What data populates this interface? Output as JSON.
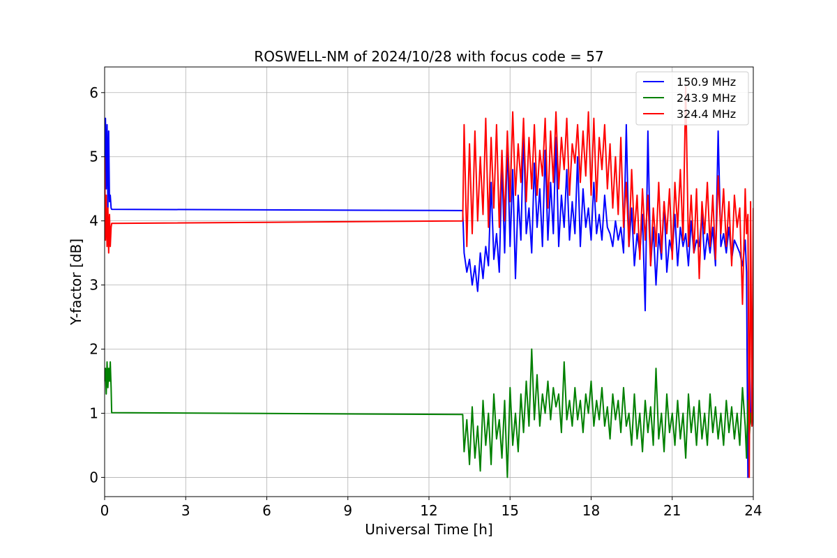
{
  "chart_data": {
    "type": "line",
    "title": "ROSWELL-NM of 2024/10/28 with focus code = 57",
    "xlabel": "Universal Time [h]",
    "ylabel": "Y-factor [dB]",
    "xlim": [
      0,
      24
    ],
    "ylim": [
      -0.3,
      6.4
    ],
    "xticks": [
      0,
      3,
      6,
      9,
      12,
      15,
      18,
      21,
      24
    ],
    "yticks": [
      0,
      1,
      2,
      3,
      4,
      5,
      6
    ],
    "xtick_labels": [
      "0",
      "3",
      "6",
      "9",
      "12",
      "15",
      "18",
      "21",
      "24"
    ],
    "ytick_labels": [
      "0",
      "1",
      "2",
      "3",
      "4",
      "5",
      "6"
    ],
    "grid": true,
    "legend_position": "top-right",
    "series": [
      {
        "name": "150.9 MHz",
        "color": "#0000ff",
        "x": [
          0.0,
          0.03,
          0.06,
          0.09,
          0.12,
          0.15,
          0.18,
          0.21,
          0.24,
          0.26,
          13.25,
          13.3,
          13.4,
          13.5,
          13.6,
          13.7,
          13.8,
          13.9,
          14.0,
          14.1,
          14.2,
          14.3,
          14.4,
          14.5,
          14.6,
          14.7,
          14.8,
          14.9,
          15.0,
          15.1,
          15.2,
          15.3,
          15.4,
          15.5,
          15.6,
          15.7,
          15.8,
          15.9,
          16.0,
          16.1,
          16.2,
          16.3,
          16.4,
          16.5,
          16.6,
          16.7,
          16.8,
          16.9,
          17.0,
          17.1,
          17.2,
          17.3,
          17.4,
          17.5,
          17.6,
          17.7,
          17.8,
          17.9,
          18.0,
          18.1,
          18.2,
          18.3,
          18.4,
          18.5,
          18.6,
          18.7,
          18.8,
          18.9,
          19.0,
          19.1,
          19.2,
          19.3,
          19.4,
          19.5,
          19.6,
          19.7,
          19.8,
          19.9,
          20.0,
          20.1,
          20.2,
          20.3,
          20.4,
          20.5,
          20.6,
          20.7,
          20.8,
          20.9,
          21.0,
          21.1,
          21.2,
          21.3,
          21.4,
          21.5,
          21.6,
          21.7,
          21.8,
          21.9,
          22.0,
          22.1,
          22.2,
          22.3,
          22.4,
          22.5,
          22.6,
          22.7,
          22.8,
          22.9,
          23.0,
          23.1,
          23.2,
          23.3,
          23.4,
          23.5,
          23.6,
          23.7,
          23.75,
          23.8,
          23.85,
          23.9,
          23.95,
          24.0
        ],
        "y": [
          4.8,
          5.6,
          4.5,
          5.5,
          4.2,
          5.4,
          4.3,
          4.4,
          4.2,
          4.18,
          4.16,
          3.5,
          3.2,
          3.4,
          3.0,
          3.3,
          2.9,
          3.5,
          3.1,
          3.6,
          3.3,
          4.6,
          3.4,
          3.8,
          3.2,
          4.9,
          3.5,
          5.2,
          3.6,
          4.8,
          3.1,
          4.4,
          3.7,
          5.4,
          3.8,
          4.2,
          3.5,
          4.9,
          3.9,
          4.5,
          3.6,
          5.1,
          3.7,
          4.6,
          3.8,
          5.3,
          3.6,
          4.4,
          3.9,
          4.8,
          3.7,
          4.3,
          3.8,
          5.0,
          3.6,
          4.5,
          3.9,
          4.2,
          3.7,
          4.6,
          3.8,
          4.1,
          3.7,
          4.4,
          3.9,
          3.8,
          3.6,
          4.0,
          3.7,
          3.9,
          3.5,
          5.5,
          3.6,
          4.2,
          3.3,
          3.8,
          3.5,
          4.1,
          2.6,
          5.4,
          3.3,
          3.9,
          3.0,
          3.8,
          3.4,
          4.3,
          3.2,
          3.7,
          3.5,
          4.1,
          3.3,
          3.9,
          3.6,
          3.8,
          3.3,
          4.0,
          3.5,
          3.7,
          3.6,
          4.1,
          3.4,
          3.8,
          3.5,
          3.9,
          3.3,
          5.4,
          3.6,
          3.8,
          3.5,
          3.9,
          3.4,
          3.7,
          3.6,
          3.5,
          3.3,
          3.7,
          3.2,
          0.0,
          2.0,
          1.0,
          0.8,
          1.2
        ]
      },
      {
        "name": "243.9 MHz",
        "color": "#008000",
        "x": [
          0.0,
          0.03,
          0.06,
          0.09,
          0.12,
          0.15,
          0.18,
          0.21,
          0.24,
          0.26,
          13.25,
          13.3,
          13.4,
          13.5,
          13.6,
          13.7,
          13.8,
          13.9,
          14.0,
          14.1,
          14.2,
          14.3,
          14.4,
          14.5,
          14.6,
          14.7,
          14.8,
          14.9,
          15.0,
          15.1,
          15.2,
          15.3,
          15.4,
          15.5,
          15.6,
          15.7,
          15.8,
          15.9,
          16.0,
          16.1,
          16.2,
          16.3,
          16.4,
          16.5,
          16.6,
          16.7,
          16.8,
          16.9,
          17.0,
          17.1,
          17.2,
          17.3,
          17.4,
          17.5,
          17.6,
          17.7,
          17.8,
          17.9,
          18.0,
          18.1,
          18.2,
          18.3,
          18.4,
          18.5,
          18.6,
          18.7,
          18.8,
          18.9,
          19.0,
          19.1,
          19.2,
          19.3,
          19.4,
          19.5,
          19.6,
          19.7,
          19.8,
          19.9,
          20.0,
          20.1,
          20.2,
          20.3,
          20.4,
          20.5,
          20.6,
          20.7,
          20.8,
          20.9,
          21.0,
          21.1,
          21.2,
          21.3,
          21.4,
          21.5,
          21.6,
          21.7,
          21.8,
          21.9,
          22.0,
          22.1,
          22.2,
          22.3,
          22.4,
          22.5,
          22.6,
          22.7,
          22.8,
          22.9,
          23.0,
          23.1,
          23.2,
          23.3,
          23.4,
          23.5,
          23.6,
          23.7,
          23.75,
          23.8,
          23.85,
          23.9,
          23.95,
          24.0
        ],
        "y": [
          1.5,
          1.7,
          1.3,
          1.8,
          1.4,
          1.7,
          1.5,
          1.8,
          1.4,
          1.01,
          0.98,
          0.4,
          0.9,
          0.2,
          1.1,
          0.3,
          0.8,
          0.1,
          1.2,
          0.5,
          1.0,
          0.2,
          1.3,
          0.6,
          0.9,
          0.3,
          1.2,
          0.0,
          1.4,
          0.5,
          1.0,
          0.4,
          1.3,
          0.7,
          1.5,
          0.8,
          2.0,
          0.9,
          1.6,
          0.8,
          1.3,
          1.0,
          1.5,
          0.9,
          1.4,
          1.1,
          1.3,
          0.7,
          1.8,
          0.9,
          1.2,
          0.8,
          1.4,
          0.9,
          1.2,
          0.7,
          1.3,
          1.0,
          1.5,
          0.8,
          1.2,
          0.9,
          1.4,
          0.8,
          1.1,
          0.6,
          1.3,
          0.9,
          1.2,
          0.7,
          1.4,
          0.8,
          1.0,
          0.5,
          1.3,
          0.6,
          1.0,
          0.4,
          1.2,
          0.7,
          1.1,
          0.5,
          1.7,
          0.6,
          1.0,
          0.4,
          1.3,
          0.7,
          1.0,
          0.5,
          1.2,
          0.6,
          1.0,
          0.3,
          1.3,
          0.7,
          1.1,
          0.5,
          1.2,
          0.6,
          1.0,
          0.5,
          1.3,
          0.7,
          1.1,
          0.6,
          1.0,
          0.5,
          1.2,
          0.7,
          1.1,
          0.6,
          1.0,
          0.5,
          1.4,
          0.8,
          0.3,
          1.2,
          0.6,
          1.0,
          0.8,
          1.4
        ]
      },
      {
        "name": "324.4 MHz",
        "color": "#ff0000",
        "x": [
          0.0,
          0.03,
          0.06,
          0.09,
          0.12,
          0.15,
          0.18,
          0.21,
          0.24,
          0.26,
          13.25,
          13.3,
          13.4,
          13.5,
          13.6,
          13.7,
          13.8,
          13.9,
          14.0,
          14.1,
          14.2,
          14.3,
          14.4,
          14.5,
          14.6,
          14.7,
          14.8,
          14.9,
          15.0,
          15.1,
          15.2,
          15.3,
          15.4,
          15.5,
          15.6,
          15.7,
          15.8,
          15.9,
          16.0,
          16.1,
          16.2,
          16.3,
          16.4,
          16.5,
          16.6,
          16.7,
          16.8,
          16.9,
          17.0,
          17.1,
          17.2,
          17.3,
          17.4,
          17.5,
          17.6,
          17.7,
          17.8,
          17.9,
          18.0,
          18.1,
          18.2,
          18.3,
          18.4,
          18.5,
          18.6,
          18.7,
          18.8,
          18.9,
          19.0,
          19.1,
          19.2,
          19.3,
          19.4,
          19.5,
          19.6,
          19.7,
          19.8,
          19.9,
          20.0,
          20.1,
          20.2,
          20.3,
          20.4,
          20.5,
          20.6,
          20.7,
          20.8,
          20.9,
          21.0,
          21.1,
          21.2,
          21.3,
          21.4,
          21.5,
          21.6,
          21.7,
          21.8,
          21.9,
          22.0,
          22.1,
          22.2,
          22.3,
          22.4,
          22.5,
          22.6,
          22.7,
          22.8,
          22.9,
          23.0,
          23.1,
          23.2,
          23.3,
          23.4,
          23.5,
          23.6,
          23.7,
          23.75,
          23.8,
          23.85,
          23.9,
          23.95,
          24.0
        ],
        "y": [
          5.0,
          3.7,
          4.4,
          3.6,
          4.2,
          3.5,
          4.1,
          3.6,
          3.9,
          3.96,
          4.0,
          5.5,
          3.6,
          5.2,
          3.8,
          5.4,
          4.0,
          5.0,
          4.1,
          5.6,
          3.9,
          5.3,
          4.2,
          5.5,
          3.9,
          5.1,
          4.0,
          5.4,
          4.3,
          5.7,
          4.4,
          5.2,
          4.6,
          5.6,
          4.3,
          5.3,
          4.5,
          5.5,
          4.4,
          5.1,
          4.7,
          5.6,
          4.2,
          5.4,
          4.6,
          5.7,
          4.5,
          5.3,
          4.8,
          5.6,
          4.4,
          5.2,
          4.9,
          5.5,
          4.6,
          5.4,
          4.7,
          5.7,
          4.4,
          5.6,
          4.3,
          5.3,
          4.8,
          5.5,
          4.5,
          5.2,
          4.2,
          5.0,
          4.1,
          5.3,
          3.9,
          4.6,
          3.6,
          4.8,
          3.8,
          4.4,
          3.4,
          4.5,
          3.7,
          4.4,
          3.3,
          4.2,
          3.6,
          4.6,
          3.5,
          4.3,
          3.8,
          4.5,
          3.4,
          4.6,
          3.9,
          4.8,
          3.7,
          6.1,
          3.6,
          4.4,
          3.5,
          4.5,
          3.1,
          4.3,
          3.8,
          4.6,
          3.6,
          4.4,
          3.4,
          4.7,
          3.8,
          4.5,
          3.6,
          4.3,
          3.3,
          4.4,
          3.9,
          4.2,
          2.7,
          4.5,
          3.8,
          4.1,
          0.0,
          4.3,
          0.8,
          4.2
        ]
      }
    ]
  }
}
